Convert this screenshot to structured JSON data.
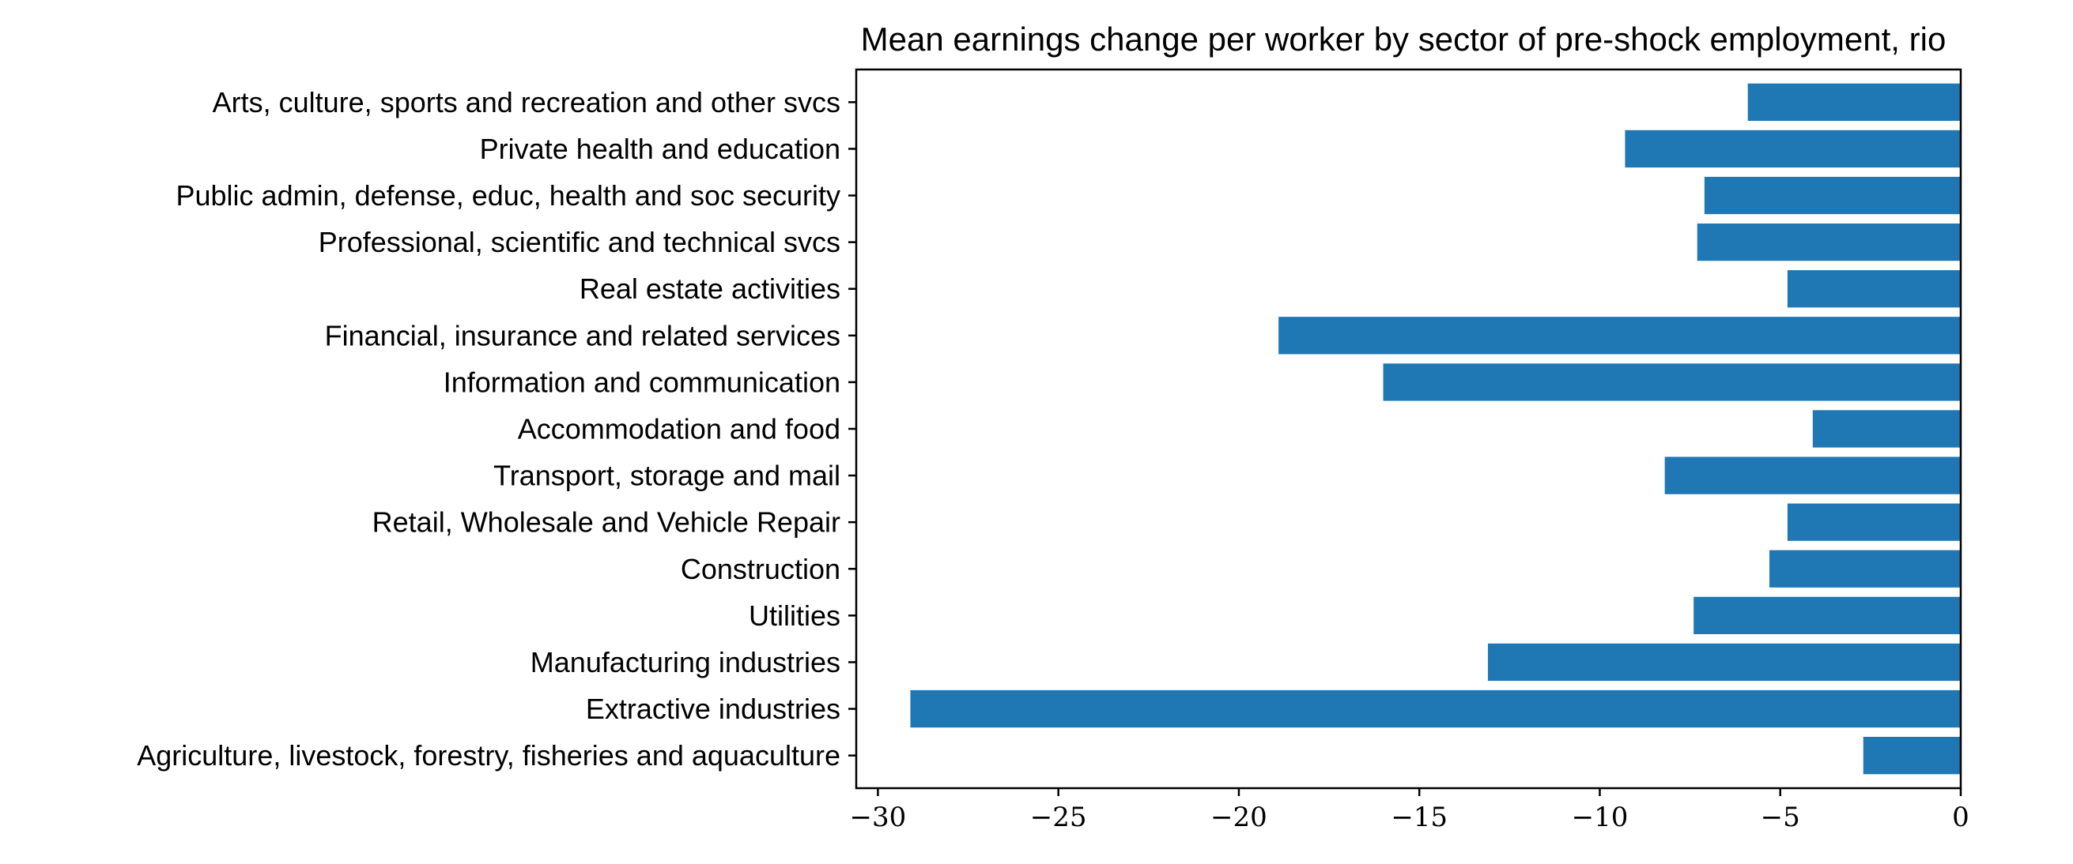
{
  "chart_data": {
    "type": "bar",
    "orientation": "horizontal",
    "title": "Mean earnings change per worker by sector of pre-shock employment, rio",
    "xlabel": "",
    "ylabel": "",
    "categories": [
      "Agriculture, livestock, forestry, fisheries and aquaculture",
      "Extractive industries",
      "Manufacturing industries",
      "Utilities",
      "Construction",
      "Retail, Wholesale and Vehicle Repair",
      "Transport, storage and mail",
      "Accommodation and food",
      "Information and communication",
      "Financial, insurance and related services",
      "Real estate activities",
      "Professional, scientific and technical svcs",
      "Public admin, defense, educ, health and soc security",
      "Private health and education",
      "Arts, culture, sports and recreation and other svcs"
    ],
    "values": [
      -2.7,
      -29.1,
      -13.1,
      -7.4,
      -5.3,
      -4.8,
      -8.2,
      -4.1,
      -16.0,
      -18.9,
      -4.8,
      -7.3,
      -7.1,
      -9.3,
      -5.9
    ],
    "xlim": [
      -30.6,
      0
    ],
    "xticks": [
      -30,
      -25,
      -20,
      -15,
      -10,
      -5,
      0
    ],
    "xtick_labels": [
      "−30",
      "−25",
      "−20",
      "−15",
      "−10",
      "−5",
      "0"
    ],
    "bar_color": "#1f77b4",
    "grid": false,
    "legend": "none"
  }
}
